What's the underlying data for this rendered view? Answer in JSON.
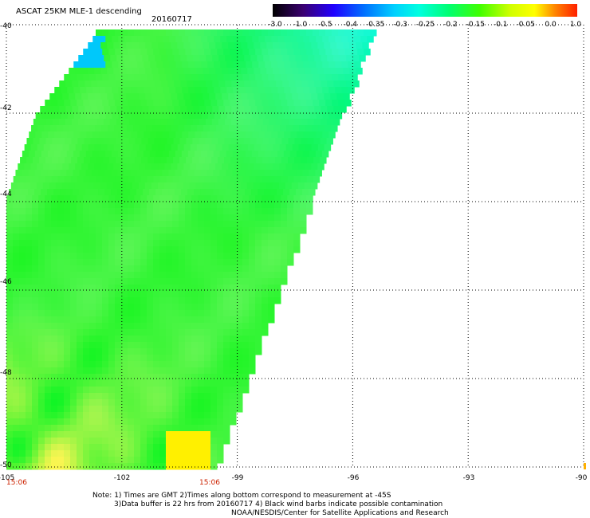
{
  "header": {
    "title": "ASCAT 25KM MLE-1 descending",
    "date": "20160717"
  },
  "colorbar": {
    "labels": [
      "-3.0",
      "-1.0",
      "-0.5",
      "-0.4",
      "-0.35",
      "-0.3",
      "-0.25",
      "-0.2",
      "-0.15",
      "-0.1",
      "-0.05",
      "0.0",
      "1.0"
    ],
    "colors": [
      "#1a0020",
      "#3a0080",
      "#4a00d0",
      "#0030ff",
      "#0090ff",
      "#00d8ff",
      "#00ffe0",
      "#00ff80",
      "#30ff20",
      "#a0ff00",
      "#ffff00",
      "#ffb000",
      "#ff3000"
    ]
  },
  "map": {
    "lat_labels": [
      "-40",
      "-42",
      "-44",
      "-46",
      "-48",
      "-50"
    ],
    "lon_labels": [
      "-105",
      "-102",
      "-99",
      "-96",
      "-93",
      "-90"
    ],
    "lat_range": [
      -50,
      -40
    ],
    "lon_range": [
      -105,
      -90
    ],
    "grid": "dotted",
    "swath_mean_value": -0.2
  },
  "times": {
    "left": "15:06",
    "right": "15:06"
  },
  "notes": {
    "line1": "Note: 1) Times are GMT 2)Times along bottom correspond to measurement at -45S",
    "line2": "3)Data buffer is 22 hrs from 20160717 4) Black wind barbs indicate possible contamination",
    "line3": "NOAA/NESDIS/Center for Satellite Applications and Research"
  }
}
